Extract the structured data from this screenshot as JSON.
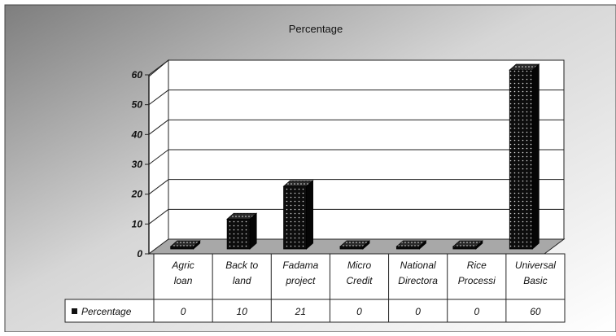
{
  "chart_data": {
    "type": "bar",
    "title": "Percentage",
    "categories": [
      [
        "Agric",
        "loan"
      ],
      [
        "Back to",
        "land"
      ],
      [
        "Fadama",
        "project"
      ],
      [
        "Micro",
        "Credit"
      ],
      [
        "National",
        "Directora"
      ],
      [
        "Rice",
        "Processi"
      ],
      [
        "Universal",
        "Basic"
      ]
    ],
    "series": [
      {
        "name": "Percentage",
        "values": [
          0,
          10,
          21,
          0,
          0,
          0,
          60
        ]
      }
    ],
    "table_values": [
      "0",
      "10",
      "21",
      "0",
      "0",
      "0",
      "60"
    ],
    "y_ticks": [
      "0",
      "10",
      "20",
      "30",
      "40",
      "50",
      "60"
    ],
    "ylim": [
      0,
      60
    ],
    "grid": true,
    "legend_placement": "data-table",
    "colors": {
      "bar": "#111111",
      "background_dark": "#8c8c8c",
      "background_light": "#ffffff"
    }
  }
}
